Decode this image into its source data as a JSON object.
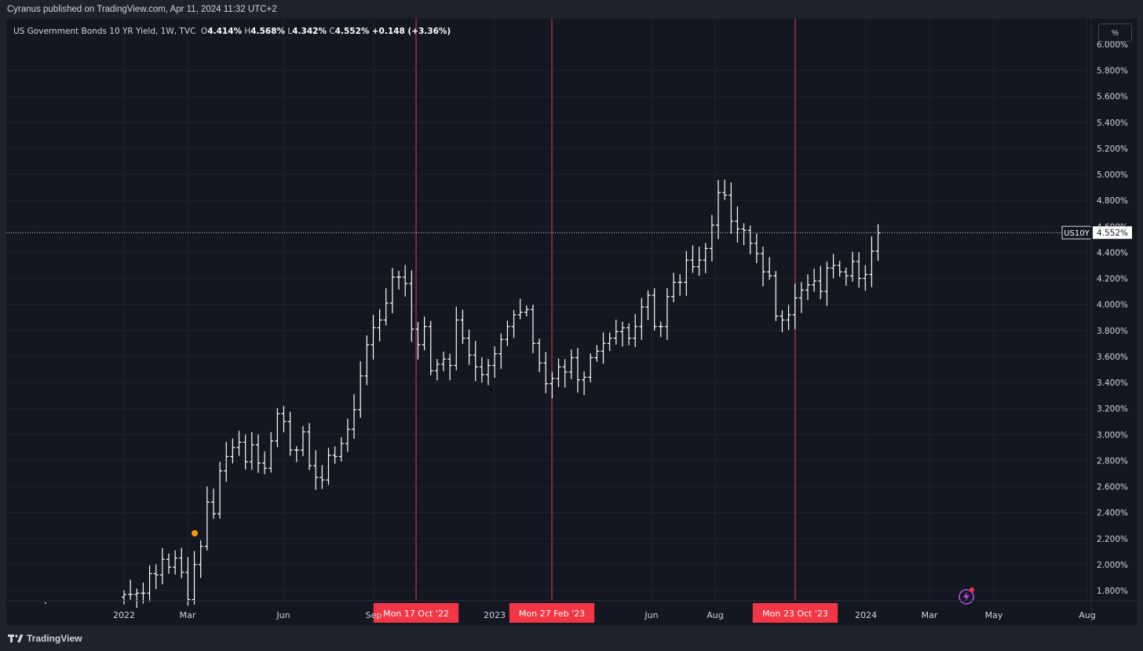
{
  "publisher_line": "Cyranus published on TradingView.com, Apr 11, 2024 11:32 UTC+2",
  "legend": {
    "symbol": "US Government Bonds 10 YR Yield, 1W, TVC",
    "open_label": "O",
    "open": "4.414%",
    "high_label": "H",
    "high": "4.568%",
    "low_label": "L",
    "low": "4.342%",
    "close_label": "C",
    "close": "4.552%",
    "change": "+0.148 (+3.36%)"
  },
  "scale_button": "%",
  "price_tag": {
    "symbol": "US10Y",
    "value": "4.552%"
  },
  "footer_logo": "TradingView",
  "colors": {
    "background": "#131722",
    "bar": "#ffffff",
    "marker_line": "#f23645",
    "dot": "#ff9800",
    "lightning": "#b24bdc"
  },
  "chart_data": {
    "type": "ohlc",
    "title": "US Government Bonds 10 YR Yield, 1W, TVC",
    "ylim": [
      1.65,
      6.0
    ],
    "y_ticks": [
      "5.800%",
      "5.600%",
      "5.400%",
      "5.200%",
      "5.000%",
      "4.800%",
      "4.600%",
      "4.400%",
      "4.200%",
      "4.000%",
      "3.800%",
      "3.600%",
      "3.400%",
      "3.200%",
      "3.000%",
      "2.800%",
      "2.600%",
      "2.400%",
      "2.200%",
      "2.000%",
      "1.800%"
    ],
    "x_ticks": [
      "2022",
      "Mar",
      "Jun",
      "Sep",
      "2023",
      "Jun",
      "Aug",
      "2024",
      "Mar",
      "May",
      "Aug"
    ],
    "vertical_markers": [
      "Mon 17 Oct '22",
      "Mon 27 Feb '23",
      "Mon 23 Oct '23"
    ],
    "last_value": 4.552,
    "weekly_closes": [
      1.77,
      1.77,
      1.78,
      1.78,
      1.93,
      1.92,
      2.04,
      1.98,
      2.05,
      1.94,
      1.73,
      2.0,
      2.14,
      2.48,
      2.39,
      2.72,
      2.83,
      2.9,
      2.94,
      2.79,
      2.92,
      2.78,
      2.74,
      2.95,
      3.16,
      3.1,
      2.88,
      2.88,
      3.02,
      2.76,
      2.67,
      2.65,
      2.84,
      2.83,
      2.93,
      3.04,
      3.19,
      3.45,
      3.69,
      3.82,
      3.88,
      4.01,
      4.21,
      4.21,
      4.16,
      3.81,
      3.69,
      3.83,
      3.49,
      3.54,
      3.58,
      3.53,
      3.88,
      3.74,
      3.61,
      3.52,
      3.46,
      3.53,
      3.62,
      3.73,
      3.83,
      3.92,
      3.94,
      3.96,
      3.7,
      3.55,
      3.39,
      3.43,
      3.52,
      3.48,
      3.59,
      3.42,
      3.44,
      3.59,
      3.64,
      3.7,
      3.74,
      3.79,
      3.82,
      3.74,
      3.83,
      3.98,
      4.07,
      3.83,
      3.83,
      4.06,
      4.17,
      4.17,
      4.34,
      4.29,
      4.34,
      4.43,
      4.61,
      4.86,
      4.84,
      4.64,
      4.58,
      4.57,
      4.47,
      4.39,
      4.25,
      4.22,
      3.91,
      3.88,
      3.92,
      4.05,
      4.11,
      4.15,
      4.18,
      4.1,
      4.28,
      4.3,
      4.25,
      4.22,
      4.33,
      4.2,
      4.23,
      4.41,
      4.55
    ],
    "orange_dot": {
      "date": "Mar 2022",
      "value": 2.24
    }
  }
}
